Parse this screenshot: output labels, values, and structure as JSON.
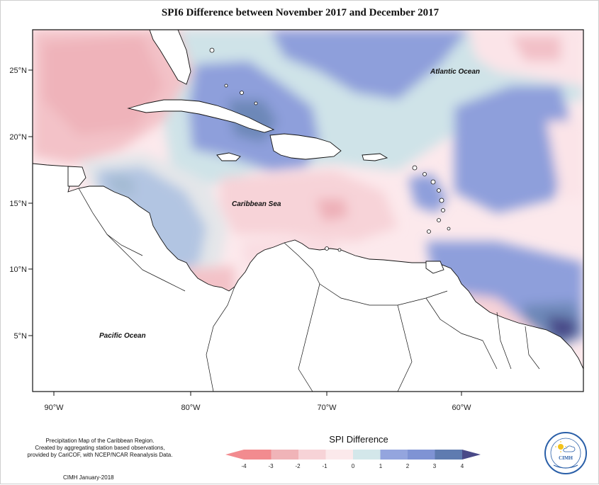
{
  "title": "SPI6 Difference between November 2017 and December 2017",
  "map": {
    "lon_ticks": [
      "90°W",
      "80°W",
      "70°W",
      "60°W"
    ],
    "lat_ticks": [
      "25°N",
      "20°N",
      "15°N",
      "10°N",
      "5°N"
    ],
    "labels": {
      "atlantic": "Atlantic Ocean",
      "caribbean": "Caribbean Sea",
      "pacific": "Pacific Ocean"
    }
  },
  "legend": {
    "title": "SPI Difference",
    "ticks": [
      "-4",
      "-3",
      "-2",
      "-1",
      "0",
      "1",
      "2",
      "3",
      "4"
    ],
    "colors": [
      "#f28b8f",
      "#f0b4b8",
      "#f7d3d7",
      "#fbe9eb",
      "#d3e7ea",
      "#94a5de",
      "#7f93d4",
      "#5f7bb0",
      "#4a4a88"
    ]
  },
  "footer": {
    "lines": [
      "Precipitation Map of the Caribbean Region.",
      "Created by aggregating station based observations,",
      "provided by CariCOF, with NCEP/NCAR Reanalysis Data."
    ],
    "credit": "CIMH January-2018"
  },
  "logo": {
    "name": "CIMH"
  }
}
